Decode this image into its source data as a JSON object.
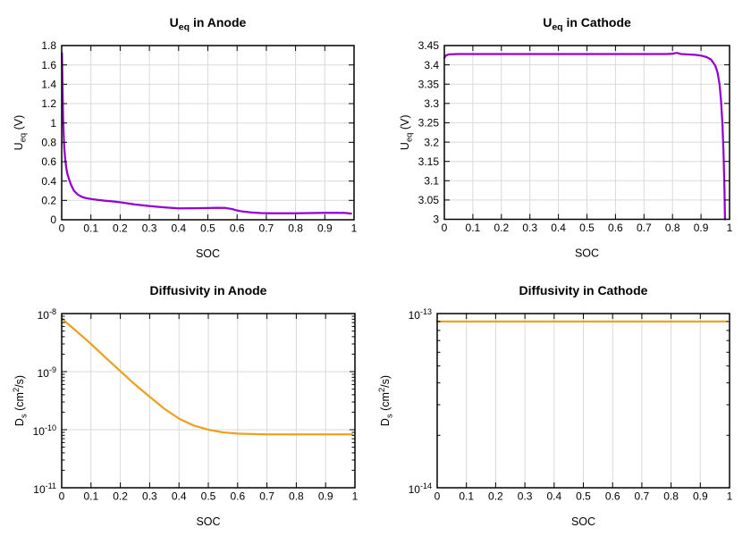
{
  "figure": {
    "background": "#ffffff",
    "grid_color": "#d9d9d9",
    "frame_color": "#000000",
    "text_color": "#000000",
    "purple": "#9400d3",
    "orange": "#eba123"
  },
  "chart_data": [
    {
      "id": "ueq_anode",
      "type": "line",
      "title": [
        {
          "t": "U"
        },
        {
          "t": "eq",
          "pos": "sub"
        },
        {
          "t": " in Anode"
        }
      ],
      "xlabel": "SOC",
      "ylabel": [
        {
          "t": "U"
        },
        {
          "t": "eq",
          "pos": "sub"
        },
        {
          "t": " (V)"
        }
      ],
      "yscale": "linear",
      "xlim": [
        0,
        1
      ],
      "ylim": [
        0,
        1.8
      ],
      "grid": true,
      "legend": "none",
      "xticks": [
        0,
        0.1,
        0.2,
        0.3,
        0.4,
        0.5,
        0.6,
        0.7,
        0.8,
        0.9,
        1
      ],
      "xtick_labels": [
        "0",
        "0.1",
        "0.2",
        "0.3",
        "0.4",
        "0.5",
        "0.6",
        "0.7",
        "0.8",
        "0.9",
        "1"
      ],
      "yticks": [
        0,
        0.2,
        0.4,
        0.6,
        0.8,
        1,
        1.2,
        1.4,
        1.6,
        1.8
      ],
      "ytick_labels": [
        "0",
        "0.2",
        "0.4",
        "0.6",
        "0.8",
        "1",
        "1.2",
        "1.4",
        "1.6",
        "1.8"
      ],
      "line_color": "#9400d3",
      "x": [
        0.001,
        0.003,
        0.005,
        0.007,
        0.009,
        0.012,
        0.016,
        0.02,
        0.025,
        0.032,
        0.042,
        0.055,
        0.07,
        0.085,
        0.1,
        0.12,
        0.15,
        0.18,
        0.21,
        0.25,
        0.3,
        0.35,
        0.4,
        0.45,
        0.5,
        0.53,
        0.56,
        0.58,
        0.6,
        0.62,
        0.65,
        0.68,
        0.72,
        0.76,
        0.8,
        0.85,
        0.9,
        0.94,
        0.97,
        0.99
      ],
      "y": [
        1.72,
        1.35,
        1.05,
        0.86,
        0.74,
        0.63,
        0.53,
        0.47,
        0.42,
        0.36,
        0.3,
        0.26,
        0.235,
        0.222,
        0.215,
        0.207,
        0.197,
        0.188,
        0.176,
        0.158,
        0.142,
        0.128,
        0.118,
        0.119,
        0.121,
        0.124,
        0.122,
        0.113,
        0.096,
        0.085,
        0.075,
        0.069,
        0.067,
        0.067,
        0.067,
        0.069,
        0.071,
        0.072,
        0.07,
        0.064
      ]
    },
    {
      "id": "ueq_cathode",
      "type": "line",
      "title": [
        {
          "t": "U"
        },
        {
          "t": "eq",
          "pos": "sub"
        },
        {
          "t": " in Cathode"
        }
      ],
      "xlabel": "SOC",
      "ylabel": [
        {
          "t": "U"
        },
        {
          "t": "eq",
          "pos": "sub"
        },
        {
          "t": " (V)"
        }
      ],
      "yscale": "linear",
      "xlim": [
        0,
        1
      ],
      "ylim": [
        3,
        3.45
      ],
      "grid": true,
      "legend": "none",
      "xticks": [
        0,
        0.1,
        0.2,
        0.3,
        0.4,
        0.5,
        0.6,
        0.7,
        0.8,
        0.9,
        1
      ],
      "xtick_labels": [
        "0",
        "0.1",
        "0.2",
        "0.3",
        "0.4",
        "0.5",
        "0.6",
        "0.7",
        "0.8",
        "0.9",
        "1"
      ],
      "yticks": [
        3,
        3.05,
        3.1,
        3.15,
        3.2,
        3.25,
        3.3,
        3.35,
        3.4,
        3.45
      ],
      "ytick_labels": [
        "3",
        "3.05",
        "3.1",
        "3.15",
        "3.2",
        "3.25",
        "3.3",
        "3.35",
        "3.4",
        "3.45"
      ],
      "line_color": "#9400d3",
      "x": [
        0,
        0.005,
        0.015,
        0.05,
        0.1,
        0.2,
        0.3,
        0.4,
        0.5,
        0.6,
        0.7,
        0.78,
        0.8,
        0.815,
        0.83,
        0.85,
        0.88,
        0.9,
        0.92,
        0.935,
        0.95,
        0.958,
        0.965,
        0.97,
        0.975,
        0.979,
        0.982,
        0.984
      ],
      "y": [
        3.418,
        3.424,
        3.427,
        3.428,
        3.428,
        3.428,
        3.428,
        3.428,
        3.428,
        3.428,
        3.428,
        3.428,
        3.429,
        3.431,
        3.428,
        3.427,
        3.426,
        3.424,
        3.42,
        3.414,
        3.398,
        3.38,
        3.35,
        3.31,
        3.25,
        3.17,
        3.08,
        3.0
      ]
    },
    {
      "id": "diffusivity_anode",
      "type": "line",
      "title": [
        {
          "t": "Diffusivity in Anode"
        }
      ],
      "xlabel": "SOC",
      "ylabel": [
        {
          "t": "D"
        },
        {
          "t": "s",
          "pos": "sub"
        },
        {
          "t": " (cm"
        },
        {
          "t": "2",
          "pos": "sup"
        },
        {
          "t": "/s)"
        }
      ],
      "yscale": "log",
      "xlim": [
        0,
        1
      ],
      "ylim": [
        1e-11,
        1e-08
      ],
      "grid": true,
      "legend": "none",
      "xticks": [
        0,
        0.1,
        0.2,
        0.3,
        0.4,
        0.5,
        0.6,
        0.7,
        0.8,
        0.9,
        1
      ],
      "xtick_labels": [
        "0",
        "0.1",
        "0.2",
        "0.3",
        "0.4",
        "0.5",
        "0.6",
        "0.7",
        "0.8",
        "0.9",
        "1"
      ],
      "yticks": [
        1e-11,
        1e-10,
        1e-09,
        1e-08
      ],
      "ytick_labels": [
        "10^-11",
        "10^-10",
        "10^-9",
        "10^-8"
      ],
      "line_color": "#eba123",
      "x": [
        0,
        0.05,
        0.1,
        0.15,
        0.2,
        0.25,
        0.3,
        0.35,
        0.4,
        0.45,
        0.5,
        0.55,
        0.6,
        0.65,
        0.7,
        0.75,
        0.8,
        0.85,
        0.9,
        0.95,
        0.99
      ],
      "y": [
        8.2e-09,
        5e-09,
        3e-09,
        1.74e-09,
        1.02e-09,
        6e-10,
        3.7e-10,
        2.3e-10,
        1.55e-10,
        1.18e-10,
        1e-10,
        9e-11,
        8.55e-11,
        8.4e-11,
        8.32e-11,
        8.3e-11,
        8.3e-11,
        8.3e-11,
        8.3e-11,
        8.3e-11,
        8.3e-11
      ]
    },
    {
      "id": "diffusivity_cathode",
      "type": "line",
      "title": [
        {
          "t": "Diffusivity in Cathode"
        }
      ],
      "xlabel": "SOC",
      "ylabel": [
        {
          "t": "D"
        },
        {
          "t": "s",
          "pos": "sub"
        },
        {
          "t": " (cm"
        },
        {
          "t": "2",
          "pos": "sup"
        },
        {
          "t": "/s)"
        }
      ],
      "yscale": "log",
      "xlim": [
        0,
        1
      ],
      "ylim": [
        1e-14,
        1e-13
      ],
      "grid": true,
      "legend": "none",
      "xticks": [
        0,
        0.1,
        0.2,
        0.3,
        0.4,
        0.5,
        0.6,
        0.7,
        0.8,
        0.9,
        1
      ],
      "xtick_labels": [
        "0",
        "0.1",
        "0.2",
        "0.3",
        "0.4",
        "0.5",
        "0.6",
        "0.7",
        "0.8",
        "0.9",
        "1"
      ],
      "yticks": [
        1e-14,
        1e-13
      ],
      "ytick_labels": [
        "10^-14",
        "10^-13"
      ],
      "line_color": "#eba123",
      "x": [
        0,
        0.2,
        0.4,
        0.6,
        0.8,
        0.99
      ],
      "y": [
        9e-14,
        9e-14,
        9e-14,
        9e-14,
        9e-14,
        9e-14
      ]
    }
  ]
}
